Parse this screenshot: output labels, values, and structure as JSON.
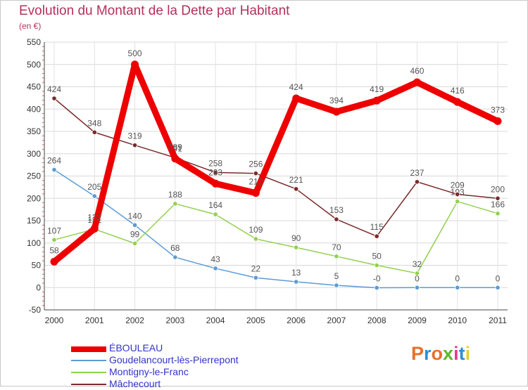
{
  "header": {
    "title": "Evolution du Montant de la Dette par Habitant",
    "subtitle": "(en €)"
  },
  "brand": {
    "text": "Proxiti",
    "colors": [
      "#e8702a",
      "#2a8fd8",
      "#e8702a",
      "#5bb82e",
      "#e83a8a",
      "#2a8fd8",
      "#e8d02a"
    ]
  },
  "chart_data": {
    "type": "line",
    "x": [
      "2000",
      "2001",
      "2002",
      "2003",
      "2004",
      "2005",
      "2006",
      "2007",
      "2008",
      "2009",
      "2010",
      "2011"
    ],
    "ylim": [
      -50,
      550
    ],
    "yticks": [
      "-50",
      "0",
      "50",
      "100",
      "150",
      "200",
      "250",
      "300",
      "350",
      "400",
      "450",
      "500",
      "550"
    ],
    "grid": true,
    "legend_placement": "bottom-left",
    "series": [
      {
        "name": "Goudelancourt-lès-Pierrepont",
        "color": "#5b9bd5",
        "values": [
          264,
          205,
          140,
          68,
          43,
          22,
          13,
          5,
          -0.4,
          0,
          0,
          0
        ],
        "labels": [
          "264",
          "205",
          "140",
          "68",
          "43",
          "22",
          "13",
          "5",
          "-0",
          "0",
          "0",
          "0"
        ]
      },
      {
        "name": "Montigny-le-Franc",
        "color": "#92d050",
        "values": [
          107,
          131,
          99,
          188,
          164,
          109,
          90,
          70,
          50,
          32,
          193,
          166
        ],
        "labels": [
          "107",
          "131",
          "99",
          "188",
          "164",
          "109",
          "90",
          "70",
          "50",
          "32",
          "193",
          "166"
        ]
      },
      {
        "name": "Mâchecourt",
        "color": "#7b2a2a",
        "values": [
          424,
          348,
          319,
          291,
          258,
          256,
          221,
          153,
          115,
          237,
          209,
          200
        ],
        "labels": [
          "424",
          "348",
          "319",
          "291",
          "258",
          "256",
          "221",
          "153",
          "115",
          "237",
          "209",
          "200"
        ]
      },
      {
        "name": "ÉBOULEAU",
        "color": "#ee0000",
        "values": [
          58,
          132,
          500,
          289,
          233,
          212,
          424,
          394,
          419,
          460,
          416,
          373
        ],
        "labels": [
          "58",
          "132",
          "500",
          "289",
          "233",
          "212",
          "424",
          "394",
          "419",
          "460",
          "416",
          "373"
        ]
      }
    ]
  },
  "legend": {
    "items": [
      {
        "name": "ÉBOULEAU",
        "color": "#ee0000"
      },
      {
        "name": "Goudelancourt-lès-Pierrepont",
        "color": "#5b9bd5"
      },
      {
        "name": "Montigny-le-Franc",
        "color": "#92d050"
      },
      {
        "name": "Mâchecourt",
        "color": "#7b2a2a"
      }
    ]
  }
}
